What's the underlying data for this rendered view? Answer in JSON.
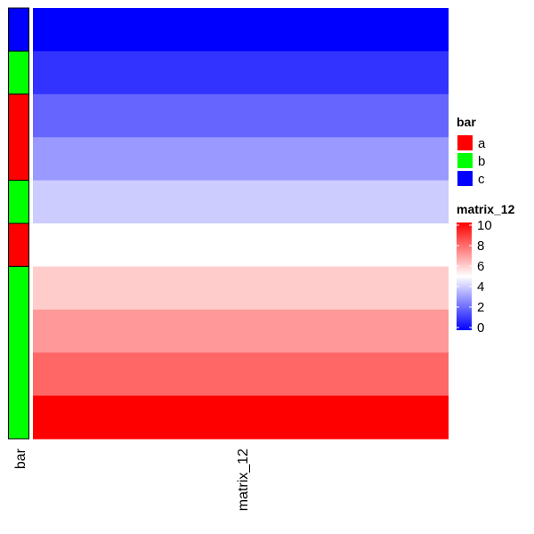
{
  "chart_data": {
    "type": "heatmap",
    "column_labels": [
      "matrix_12"
    ],
    "annotation_name": "bar",
    "rows": [
      {
        "bar": "c",
        "value": 0
      },
      {
        "bar": "b",
        "value": 1
      },
      {
        "bar": "a",
        "value": 2
      },
      {
        "bar": "a",
        "value": 3
      },
      {
        "bar": "b",
        "value": 4
      },
      {
        "bar": "a",
        "value": 5
      },
      {
        "bar": "b",
        "value": 6
      },
      {
        "bar": "b",
        "value": 7
      },
      {
        "bar": "b",
        "value": 8
      },
      {
        "bar": "b",
        "value": 10
      }
    ],
    "annotation_legend": {
      "title": "bar",
      "items": [
        {
          "label": "a",
          "color": "#ff0000"
        },
        {
          "label": "b",
          "color": "#00ff00"
        },
        {
          "label": "c",
          "color": "#0000ff"
        }
      ]
    },
    "color_legend": {
      "title": "matrix_12",
      "ticks": [
        "0",
        "2",
        "4",
        "6",
        "8",
        "10"
      ],
      "range": [
        0,
        10
      ],
      "colors": {
        "low": "#0000ff",
        "mid": "#ffffff",
        "high": "#ff0000"
      }
    }
  }
}
